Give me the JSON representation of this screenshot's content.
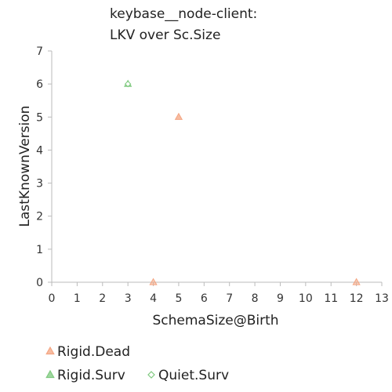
{
  "chart_data": {
    "type": "scatter",
    "title": [
      "keybase__node-client:",
      "LKV over Sc.Size"
    ],
    "xlabel": "SchemaSize@Birth",
    "ylabel": "LastKnownVersion",
    "xlim": [
      0,
      13
    ],
    "ylim": [
      0,
      7
    ],
    "xticks": [
      "0",
      "1",
      "2",
      "3",
      "4",
      "5",
      "6",
      "7",
      "8",
      "9",
      "10",
      "11",
      "12",
      "13"
    ],
    "yticks": [
      "0",
      "1",
      "2",
      "3",
      "4",
      "5",
      "6",
      "7"
    ],
    "grid": false,
    "legend_position": "bottom-left",
    "series": [
      {
        "name": "Rigid.Dead",
        "marker": "triangle",
        "color": "#f4a582",
        "points": [
          {
            "x": 4,
            "y": 0
          },
          {
            "x": 5,
            "y": 5
          },
          {
            "x": 12,
            "y": 0
          }
        ]
      },
      {
        "name": "Rigid.Surv",
        "marker": "triangle",
        "color": "#7fc97f",
        "points": [
          {
            "x": 3,
            "y": 6
          }
        ]
      },
      {
        "name": "Quiet.Surv",
        "marker": "diamond",
        "color": "#7fc97f",
        "points": [
          {
            "x": 3,
            "y": 6
          }
        ]
      }
    ]
  }
}
